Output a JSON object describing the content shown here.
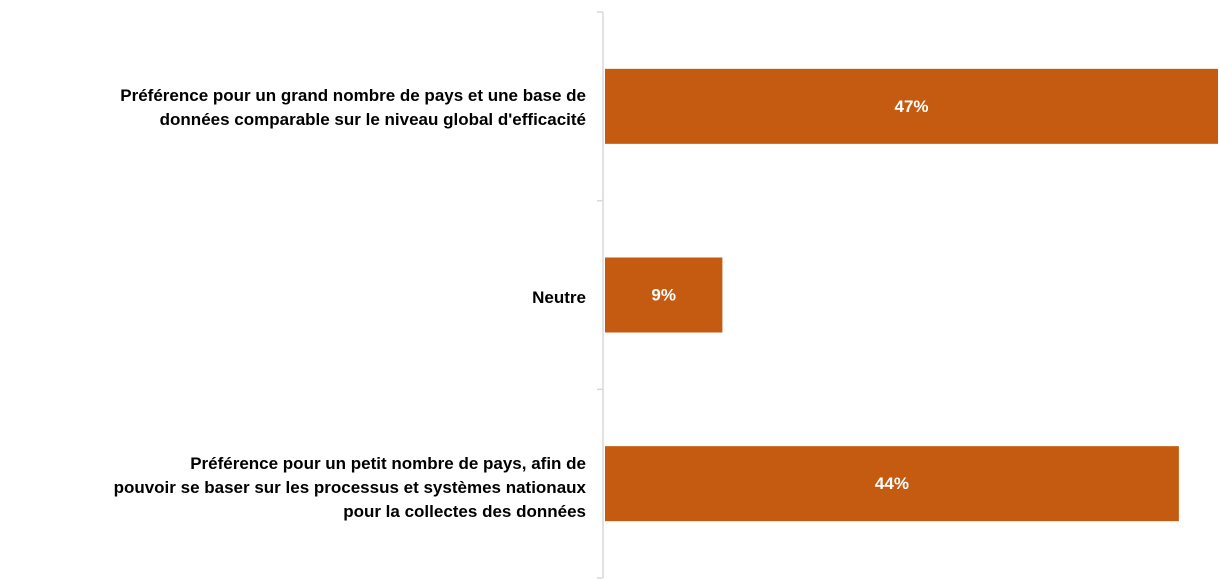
{
  "chart_data": {
    "type": "bar",
    "orientation": "horizontal",
    "categories": [
      "Préférence pour un grand nombre de pays et une base de\ndonnées comparable sur le niveau global d'efficacité",
      "Neutre",
      "Préférence pour un petit nombre de pays, afin de\npouvoir se baser sur les processus et systèmes nationaux\npour la collectes des données"
    ],
    "values": [
      47,
      9,
      44
    ],
    "data_labels": [
      "47%",
      "9%",
      "44%"
    ],
    "title": "",
    "xlabel": "",
    "ylabel": "",
    "xlim": [
      0,
      47
    ],
    "grid": false,
    "legend": "none",
    "colors": {
      "bar": "#C55A11",
      "bar_label": "#FFFFFF",
      "axis": "#D9D9D9",
      "category_label": "#000000"
    }
  }
}
